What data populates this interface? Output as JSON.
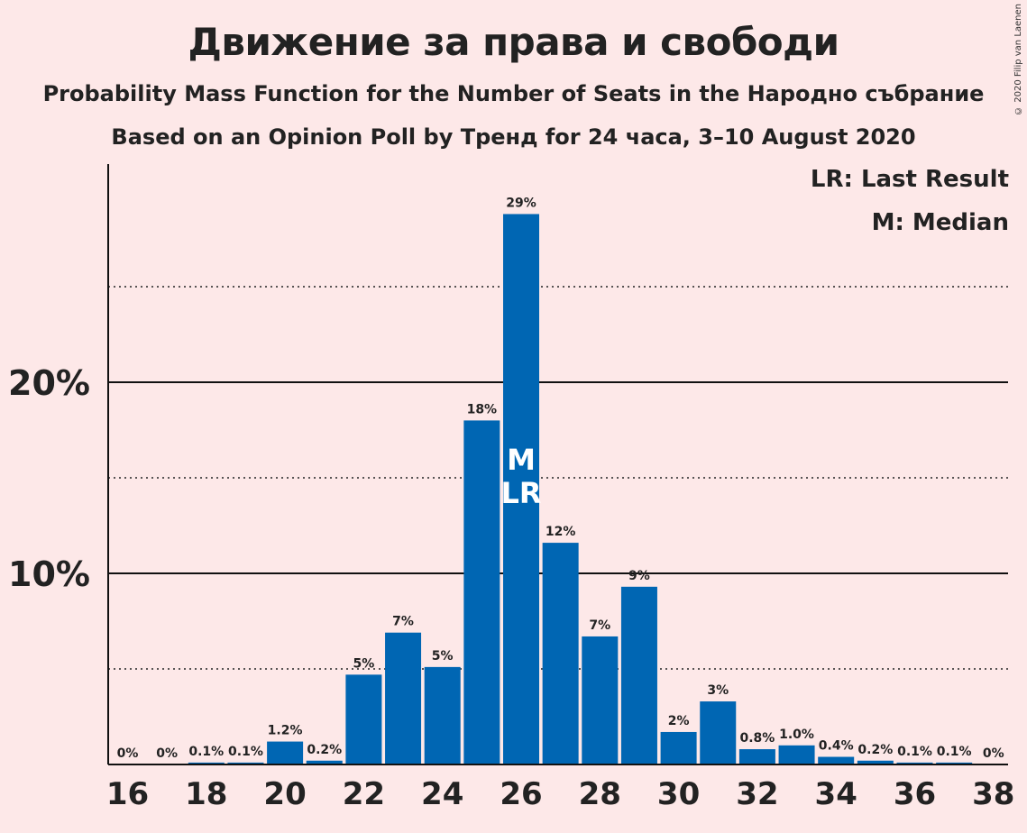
{
  "header": {
    "title": "Движение за права и свободи",
    "subtitle1": "Probability Mass Function for the Number of Seats in the Народно събрание",
    "subtitle2": "Based on an Opinion Poll by Тренд for 24 часа, 3–10 August 2020",
    "copyright": "© 2020 Filip van Laenen"
  },
  "legend": {
    "last_result": "LR: Last Result",
    "median": "M: Median"
  },
  "chart_data": {
    "type": "bar",
    "x": [
      16,
      17,
      18,
      19,
      20,
      21,
      22,
      23,
      24,
      25,
      26,
      27,
      28,
      29,
      30,
      31,
      32,
      33,
      34,
      35,
      36,
      37,
      38
    ],
    "values": [
      0,
      0,
      0.1,
      0.1,
      1.2,
      0.2,
      4.7,
      6.9,
      5.1,
      18.0,
      28.8,
      11.6,
      6.7,
      9.3,
      1.7,
      3.3,
      0.8,
      1.0,
      0.4,
      0.2,
      0.1,
      0.1,
      0
    ],
    "data_labels": [
      "0%",
      "0%",
      "0.1%",
      "0.1%",
      "1.2%",
      "0.2%",
      "5%",
      "7%",
      "5%",
      "18%",
      "29%",
      "12%",
      "7%",
      "9%",
      "2%",
      "3%",
      "0.8%",
      "1.0%",
      "0.4%",
      "0.2%",
      "0.1%",
      "0.1%",
      "0%"
    ],
    "x_tick_labels": [
      "16",
      "18",
      "20",
      "22",
      "24",
      "26",
      "28",
      "30",
      "32",
      "34",
      "36",
      "38"
    ],
    "y_tick_labels": [
      "10%",
      "20%"
    ],
    "y_major_ticks": [
      10,
      20
    ],
    "y_minor_gridlines": [
      5,
      15,
      25
    ],
    "ylim": [
      0,
      31.5
    ],
    "median_seat": 26,
    "last_result_seat": 26,
    "median_marker": "M",
    "last_result_marker": "LR",
    "bar_color": "#0066b3",
    "grid": true
  }
}
